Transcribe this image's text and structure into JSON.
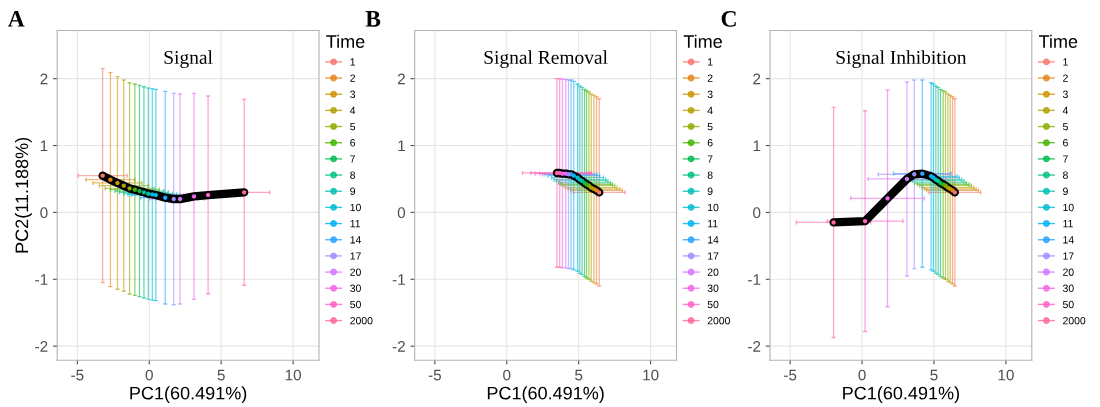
{
  "chart_data": [
    {
      "type": "scatter",
      "title": "Signal",
      "xlabel": "PC1(60.491%)",
      "ylabel": "PC2(11.188%)",
      "legend_title": "Time",
      "legend": "right",
      "grid": true,
      "marker": "circle",
      "annotations": [
        "A"
      ],
      "xlim": [
        -6.4,
        11.8
      ],
      "ylim": [
        -2.21,
        2.72
      ],
      "xticks": [
        -5,
        0,
        5,
        10
      ],
      "yticks": [
        -2,
        -1,
        0,
        1,
        2
      ],
      "series": [
        {
          "name": "1",
          "color": "#F8766D",
          "x": [
            -3.24
          ],
          "values": [
            0.55
          ],
          "errors": [
            1.6
          ],
          "xerrors": [
            1.7
          ]
        },
        {
          "name": "2",
          "color": "#E7851E",
          "x": [
            -2.7
          ],
          "values": [
            0.49
          ],
          "errors": [
            1.6
          ],
          "xerrors": [
            1.7
          ]
        },
        {
          "name": "3",
          "color": "#D09400",
          "x": [
            -2.21
          ],
          "values": [
            0.44
          ],
          "errors": [
            1.59
          ],
          "xerrors": [
            1.7
          ]
        },
        {
          "name": "4",
          "color": "#B2A100",
          "x": [
            -1.77
          ],
          "values": [
            0.4
          ],
          "errors": [
            1.58
          ],
          "xerrors": [
            1.7
          ]
        },
        {
          "name": "5",
          "color": "#89AC00",
          "x": [
            -1.37
          ],
          "values": [
            0.36
          ],
          "errors": [
            1.58
          ],
          "xerrors": [
            1.7
          ]
        },
        {
          "name": "6",
          "color": "#45B500",
          "x": [
            -1.0
          ],
          "values": [
            0.34
          ],
          "errors": [
            1.58
          ],
          "xerrors": [
            1.7
          ]
        },
        {
          "name": "7",
          "color": "#00BC51",
          "x": [
            -0.68
          ],
          "values": [
            0.32
          ],
          "errors": [
            1.58
          ],
          "xerrors": [
            1.7
          ]
        },
        {
          "name": "8",
          "color": "#00C087",
          "x": [
            -0.37
          ],
          "values": [
            0.3
          ],
          "errors": [
            1.58
          ],
          "xerrors": [
            1.7
          ]
        },
        {
          "name": "9",
          "color": "#00C0B2",
          "x": [
            -0.07
          ],
          "values": [
            0.28
          ],
          "errors": [
            1.58
          ],
          "xerrors": [
            1.7
          ]
        },
        {
          "name": "10",
          "color": "#00BCD6",
          "x": [
            0.21
          ],
          "values": [
            0.27
          ],
          "errors": [
            1.58
          ],
          "xerrors": [
            1.7
          ]
        },
        {
          "name": "11",
          "color": "#00B3F2",
          "x": [
            0.46
          ],
          "values": [
            0.26
          ],
          "errors": [
            1.58
          ],
          "xerrors": [
            1.7
          ]
        },
        {
          "name": "14",
          "color": "#29A3FF",
          "x": [
            1.11
          ],
          "values": [
            0.22
          ],
          "errors": [
            1.59
          ],
          "xerrors": [
            1.7
          ]
        },
        {
          "name": "17",
          "color": "#9C8DFF",
          "x": [
            1.7
          ],
          "values": [
            0.2
          ],
          "errors": [
            1.58
          ],
          "xerrors": [
            1.7
          ]
        },
        {
          "name": "20",
          "color": "#D277FF",
          "x": [
            2.14
          ],
          "values": [
            0.2
          ],
          "errors": [
            1.57
          ],
          "xerrors": [
            1.7
          ]
        },
        {
          "name": "30",
          "color": "#F166E8",
          "x": [
            3.11
          ],
          "values": [
            0.24
          ],
          "errors": [
            1.54
          ],
          "xerrors": [
            null
          ]
        },
        {
          "name": "50",
          "color": "#FF61C7",
          "x": [
            4.09
          ],
          "values": [
            0.26
          ],
          "errors": [
            1.48
          ],
          "xerrors": [
            1.7
          ]
        },
        {
          "name": "2000",
          "color": "#FF689E",
          "x": [
            6.6
          ],
          "values": [
            0.3
          ],
          "errors": [
            1.39
          ],
          "xerrors": [
            1.77
          ]
        },
        {
          "type": "line",
          "color": "#000000",
          "line_style": "solid",
          "marker": "none",
          "x": [
            -3.24,
            -2.7,
            -2.21,
            -1.77,
            -1.37,
            -1.0,
            -0.68,
            -0.37,
            -0.07,
            0.21,
            0.46,
            1.11,
            1.7,
            2.14,
            3.11,
            4.09,
            6.6
          ],
          "values": [
            0.55,
            0.49,
            0.44,
            0.4,
            0.36,
            0.34,
            0.32,
            0.3,
            0.28,
            0.27,
            0.26,
            0.22,
            0.2,
            0.2,
            0.24,
            0.26,
            0.3
          ]
        }
      ]
    },
    {
      "type": "scatter",
      "title": "Signal Removal",
      "xlabel": "PC1(60.491%)",
      "legend_title": "Time",
      "legend": "right",
      "grid": true,
      "marker": "circle",
      "annotations": [
        "B"
      ],
      "xlim": [
        -6.4,
        11.8
      ],
      "ylim": [
        -2.21,
        2.72
      ],
      "xticks": [
        -5,
        0,
        5,
        10
      ],
      "yticks": [
        -2,
        -1,
        0,
        1,
        2
      ],
      "series": [
        {
          "name": "1",
          "color": "#F8766D",
          "x": [
            6.43
          ],
          "values": [
            0.3
          ],
          "errors": [
            1.4
          ],
          "xerrors": [
            1.8
          ]
        },
        {
          "name": "2",
          "color": "#E7851E",
          "x": [
            6.24
          ],
          "values": [
            0.33
          ],
          "errors": [
            1.4
          ],
          "xerrors": [
            1.8
          ]
        },
        {
          "name": "3",
          "color": "#D09400",
          "x": [
            6.06
          ],
          "values": [
            0.35
          ],
          "errors": [
            1.4
          ],
          "xerrors": [
            1.8
          ]
        },
        {
          "name": "4",
          "color": "#B2A100",
          "x": [
            5.87
          ],
          "values": [
            0.37
          ],
          "errors": [
            1.4
          ],
          "xerrors": [
            1.8
          ]
        },
        {
          "name": "5",
          "color": "#89AC00",
          "x": [
            5.71
          ],
          "values": [
            0.4
          ],
          "errors": [
            1.4
          ],
          "xerrors": [
            1.8
          ]
        },
        {
          "name": "6",
          "color": "#45B500",
          "x": [
            5.55
          ],
          "values": [
            0.42
          ],
          "errors": [
            1.4
          ],
          "xerrors": [
            1.8
          ]
        },
        {
          "name": "7",
          "color": "#00BC51",
          "x": [
            5.41
          ],
          "values": [
            0.44
          ],
          "errors": [
            1.4
          ],
          "xerrors": [
            1.8
          ]
        },
        {
          "name": "8",
          "color": "#00C087",
          "x": [
            5.24
          ],
          "values": [
            0.47
          ],
          "errors": [
            1.4
          ],
          "xerrors": [
            1.8
          ]
        },
        {
          "name": "9",
          "color": "#00C0B2",
          "x": [
            5.08
          ],
          "values": [
            0.49
          ],
          "errors": [
            1.4
          ],
          "xerrors": [
            1.8
          ]
        },
        {
          "name": "10",
          "color": "#00BCD6",
          "x": [
            4.92
          ],
          "values": [
            0.52
          ],
          "errors": [
            1.4
          ],
          "xerrors": [
            1.8
          ]
        },
        {
          "name": "11",
          "color": "#00B3F2",
          "x": [
            4.66
          ],
          "values": [
            0.55
          ],
          "errors": [
            1.41
          ],
          "xerrors": [
            1.8
          ]
        },
        {
          "name": "14",
          "color": "#29A3FF",
          "x": [
            4.47
          ],
          "values": [
            0.57
          ],
          "errors": [
            1.41
          ],
          "xerrors": [
            1.8
          ]
        },
        {
          "name": "17",
          "color": "#9C8DFF",
          "x": [
            4.29
          ],
          "values": [
            0.57
          ],
          "errors": [
            1.41
          ],
          "xerrors": [
            1.8
          ]
        },
        {
          "name": "20",
          "color": "#D277FF",
          "x": [
            4.1
          ],
          "values": [
            0.58
          ],
          "errors": [
            1.41
          ],
          "xerrors": [
            1.8
          ]
        },
        {
          "name": "30",
          "color": "#F166E8",
          "x": [
            3.87
          ],
          "values": [
            0.58
          ],
          "errors": [
            1.41
          ],
          "xerrors": [
            1.9
          ]
        },
        {
          "name": "50",
          "color": "#FF61C7",
          "x": [
            3.68
          ],
          "values": [
            0.59
          ],
          "errors": [
            1.41
          ],
          "xerrors": [
            2.0
          ]
        },
        {
          "name": "2000",
          "color": "#FF689E",
          "x": [
            3.49
          ],
          "values": [
            0.59
          ],
          "errors": [
            1.41
          ],
          "xerrors": [
            2.4
          ]
        },
        {
          "type": "line",
          "color": "#000000",
          "line_style": "solid",
          "marker": "none",
          "x": [
            6.43,
            6.24,
            6.06,
            5.87,
            5.71,
            5.55,
            5.41,
            5.24,
            5.08,
            4.92,
            4.66,
            4.47,
            4.29,
            4.1,
            3.87,
            3.68,
            3.49
          ],
          "values": [
            0.3,
            0.33,
            0.35,
            0.37,
            0.4,
            0.42,
            0.44,
            0.47,
            0.49,
            0.52,
            0.55,
            0.57,
            0.57,
            0.58,
            0.58,
            0.59,
            0.59
          ]
        }
      ]
    },
    {
      "type": "scatter",
      "title": "Signal Inhibition",
      "xlabel": "PC1(60.491%)",
      "legend_title": "Time",
      "legend": "right",
      "grid": true,
      "marker": "circle",
      "annotations": [
        "C"
      ],
      "xlim": [
        -6.4,
        11.8
      ],
      "ylim": [
        -2.21,
        2.72
      ],
      "xticks": [
        -5,
        0,
        5,
        10
      ],
      "yticks": [
        -2,
        -1,
        0,
        1,
        2
      ],
      "series": [
        {
          "name": "1",
          "color": "#F8766D",
          "x": [
            6.45
          ],
          "values": [
            0.3
          ],
          "errors": [
            1.4
          ],
          "xerrors": [
            1.8
          ]
        },
        {
          "name": "2",
          "color": "#E7851E",
          "x": [
            6.29
          ],
          "values": [
            0.33
          ],
          "errors": [
            1.4
          ],
          "xerrors": [
            1.8
          ]
        },
        {
          "name": "3",
          "color": "#D09400",
          "x": [
            6.13
          ],
          "values": [
            0.35
          ],
          "errors": [
            1.4
          ],
          "xerrors": [
            1.8
          ]
        },
        {
          "name": "4",
          "color": "#B2A100",
          "x": [
            5.97
          ],
          "values": [
            0.37
          ],
          "errors": [
            1.4
          ],
          "xerrors": [
            1.8
          ]
        },
        {
          "name": "5",
          "color": "#89AC00",
          "x": [
            5.8
          ],
          "values": [
            0.4
          ],
          "errors": [
            1.4
          ],
          "xerrors": [
            1.8
          ]
        },
        {
          "name": "6",
          "color": "#45B500",
          "x": [
            5.64
          ],
          "values": [
            0.42
          ],
          "errors": [
            1.4
          ],
          "xerrors": [
            1.8
          ]
        },
        {
          "name": "7",
          "color": "#00BC51",
          "x": [
            5.45
          ],
          "values": [
            0.44
          ],
          "errors": [
            1.4
          ],
          "xerrors": [
            1.8
          ]
        },
        {
          "name": "8",
          "color": "#00C087",
          "x": [
            5.29
          ],
          "values": [
            0.47
          ],
          "errors": [
            1.4
          ],
          "xerrors": [
            1.8
          ]
        },
        {
          "name": "9",
          "color": "#00C0B2",
          "x": [
            5.13
          ],
          "values": [
            0.49
          ],
          "errors": [
            1.4
          ],
          "xerrors": [
            1.8
          ]
        },
        {
          "name": "10",
          "color": "#00BCD6",
          "x": [
            4.96
          ],
          "values": [
            0.52
          ],
          "errors": [
            1.4
          ],
          "xerrors": [
            1.8
          ]
        },
        {
          "name": "11",
          "color": "#00B3F2",
          "x": [
            4.8
          ],
          "values": [
            0.54
          ],
          "errors": [
            1.4
          ],
          "xerrors": [
            1.8
          ]
        },
        {
          "name": "14",
          "color": "#29A3FF",
          "x": [
            4.19
          ],
          "values": [
            0.58
          ],
          "errors": [
            1.4
          ],
          "xerrors": [
            2.0
          ]
        },
        {
          "name": "17",
          "color": "#9C8DFF",
          "x": [
            3.63
          ],
          "values": [
            0.57
          ],
          "errors": [
            1.41
          ],
          "xerrors": [
            2.5
          ]
        },
        {
          "name": "20",
          "color": "#D277FF",
          "x": [
            3.12
          ],
          "values": [
            0.5
          ],
          "errors": [
            1.45
          ],
          "xerrors": [
            2.7
          ]
        },
        {
          "name": "30",
          "color": "#F166E8",
          "x": [
            1.77
          ],
          "values": [
            0.21
          ],
          "errors": [
            1.62
          ],
          "xerrors": [
            2.56
          ]
        },
        {
          "name": "50",
          "color": "#FF61C7",
          "x": [
            0.21
          ],
          "values": [
            -0.13
          ],
          "errors": [
            1.65
          ],
          "xerrors": [
            2.63
          ]
        },
        {
          "name": "2000",
          "color": "#FF689E",
          "x": [
            -1.98
          ],
          "values": [
            -0.15
          ],
          "errors": [
            1.72
          ],
          "xerrors": [
            2.59
          ]
        },
        {
          "type": "line",
          "color": "#000000",
          "line_style": "solid",
          "marker": "none",
          "x": [
            6.45,
            6.29,
            6.13,
            5.97,
            5.8,
            5.64,
            5.45,
            5.29,
            5.13,
            4.96,
            4.8,
            4.19,
            3.63,
            3.12,
            1.77,
            0.21,
            -1.98
          ],
          "values": [
            0.3,
            0.33,
            0.35,
            0.37,
            0.4,
            0.42,
            0.44,
            0.47,
            0.49,
            0.52,
            0.54,
            0.58,
            0.57,
            0.5,
            0.21,
            -0.13,
            -0.15
          ]
        }
      ]
    }
  ]
}
